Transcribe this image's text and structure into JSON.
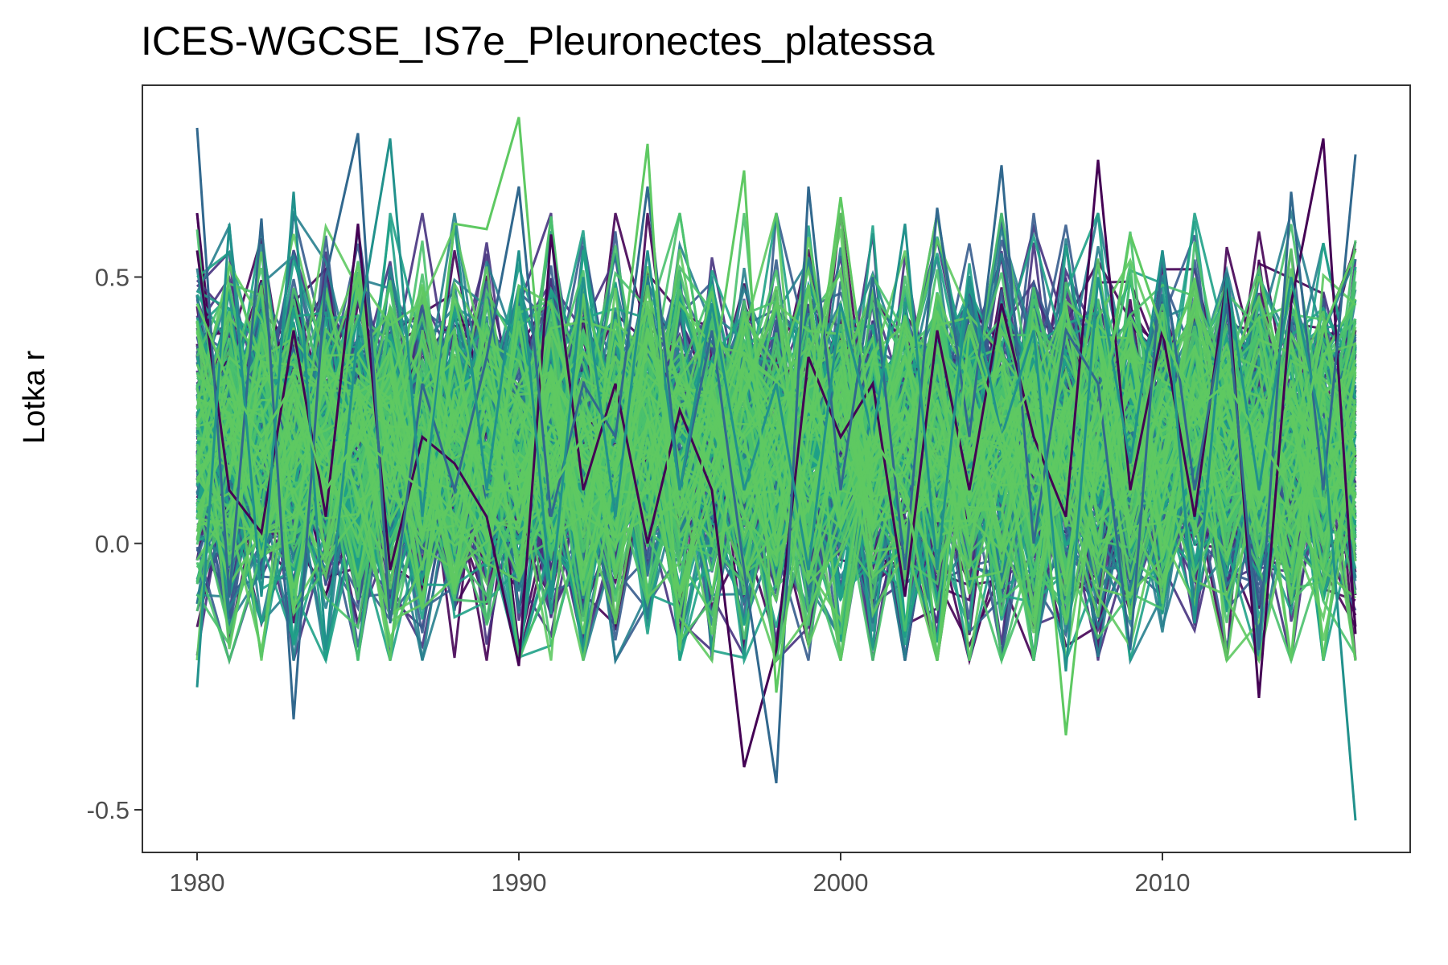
{
  "chart_data": {
    "type": "line",
    "title": "ICES-WGCSE_IS7e_Pleuronectes_platessa",
    "xlabel": "",
    "ylabel": "Lotka r",
    "xlim": [
      1978.3,
      2017.7
    ],
    "ylim": [
      -0.58,
      0.86
    ],
    "x_ticks": [
      1980,
      1990,
      2000,
      2010
    ],
    "x_tick_labels": [
      "1980",
      "1990",
      "2000",
      "2010"
    ],
    "y_ticks": [
      -0.5,
      0.0,
      0.5
    ],
    "y_tick_labels": [
      "-0.5",
      "0.0",
      "0.5"
    ],
    "x": [
      1980,
      1981,
      1982,
      1983,
      1984,
      1985,
      1986,
      1987,
      1988,
      1989,
      1990,
      1991,
      1992,
      1993,
      1994,
      1995,
      1996,
      1997,
      1998,
      1999,
      2000,
      2001,
      2002,
      2003,
      2004,
      2005,
      2006,
      2007,
      2008,
      2009,
      2010,
      2011,
      2012,
      2013,
      2014,
      2015,
      2016
    ],
    "series_count_note": "many overlapping simulation traces colored on a viridis scale",
    "highlight_series": [
      {
        "color": "#440154",
        "values": [
          0.55,
          0.1,
          0.02,
          0.4,
          0.05,
          0.6,
          -0.05,
          0.2,
          0.15,
          0.05,
          -0.23,
          0.58,
          0.1,
          0.3,
          0.0,
          0.25,
          0.1,
          -0.42,
          -0.2,
          0.35,
          0.2,
          0.3,
          -0.1,
          0.4,
          0.1,
          0.45,
          0.2,
          0.05,
          0.72,
          0.1,
          0.4,
          0.05,
          0.5,
          -0.29,
          0.45,
          0.76,
          -0.17
        ]
      },
      {
        "color": "#31688e",
        "values": [
          0.78,
          -0.1,
          0.61,
          -0.33,
          0.5,
          0.77,
          -0.15,
          0.3,
          0.1,
          0.35,
          0.67,
          0.05,
          0.3,
          0.2,
          0.67,
          0.1,
          0.4,
          -0.05,
          -0.45,
          0.67,
          0.1,
          0.5,
          -0.05,
          0.63,
          0.2,
          0.71,
          0.0,
          0.4,
          0.3,
          -0.2,
          0.55,
          0.1,
          0.45,
          -0.2,
          0.66,
          0.1,
          0.73
        ]
      },
      {
        "color": "#21918c",
        "values": [
          -0.27,
          0.6,
          -0.1,
          0.66,
          -0.2,
          0.4,
          0.76,
          0.05,
          0.6,
          0.1,
          0.55,
          -0.1,
          0.5,
          0.05,
          0.55,
          0.1,
          0.45,
          0.1,
          0.3,
          -0.05,
          0.45,
          0.2,
          0.6,
          -0.05,
          0.5,
          0.2,
          0.4,
          -0.24,
          0.5,
          0.15,
          0.55,
          -0.15,
          0.5,
          0.1,
          0.5,
          0.2,
          -0.52
        ]
      },
      {
        "color": "#5ec962",
        "values": [
          0.45,
          0.3,
          0.2,
          0.3,
          0.1,
          0.2,
          0.15,
          0.1,
          0.6,
          0.59,
          0.8,
          0.1,
          0.2,
          0.25,
          0.75,
          -0.2,
          0.3,
          0.7,
          -0.28,
          0.2,
          0.65,
          0.2,
          0.1,
          -0.22,
          0.4,
          0.2,
          0.3,
          -0.36,
          0.2,
          0.58,
          0.4,
          0.25,
          0.3,
          0.2,
          0.1,
          0.4,
          0.55
        ]
      }
    ],
    "envelope": {
      "dense_band": [
        -0.12,
        0.52
      ],
      "center_value": 0.18,
      "outer_band": [
        -0.22,
        0.62
      ]
    },
    "palette": [
      "#440154",
      "#46327e",
      "#365c8d",
      "#277f8e",
      "#1fa187",
      "#4ac16d",
      "#5ec962"
    ]
  }
}
